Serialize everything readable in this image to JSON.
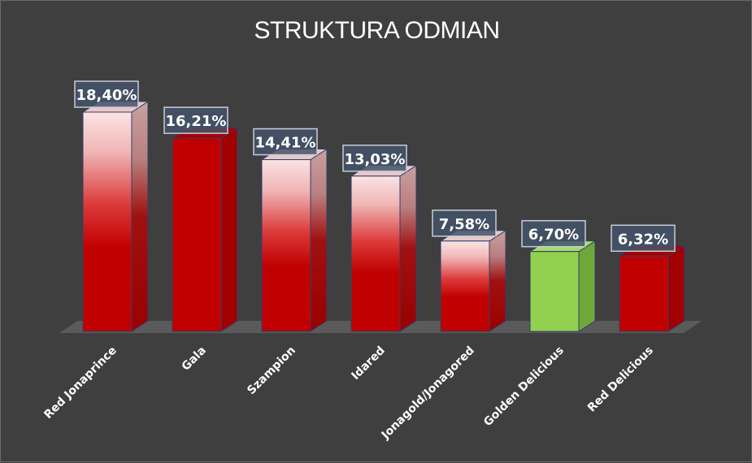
{
  "chart_data": {
    "type": "bar",
    "title": "STRUKTURA ODMIAN",
    "categories": [
      "Red Jonaprince",
      "Gala",
      "Szampion",
      "Idared",
      "Jonagold/Jonagored",
      "Golden Delicious",
      "Red Delicious"
    ],
    "values": [
      18.4,
      16.21,
      14.41,
      13.03,
      7.58,
      6.7,
      6.32
    ],
    "value_labels": [
      "18,40%",
      "16,21%",
      "14,41%",
      "13,03%",
      "7,58%",
      "6,70%",
      "6,32%"
    ],
    "styles": [
      "gradient",
      "solid-red",
      "gradient",
      "gradient",
      "gradient",
      "solid-green",
      "solid-red"
    ],
    "ylim": [
      0,
      18.4
    ],
    "grid": false,
    "legend": "none",
    "colors": {
      "red": "#c00000",
      "green": "#92d050",
      "label_bg": "#44546a",
      "background": "#3f3f3f"
    }
  }
}
